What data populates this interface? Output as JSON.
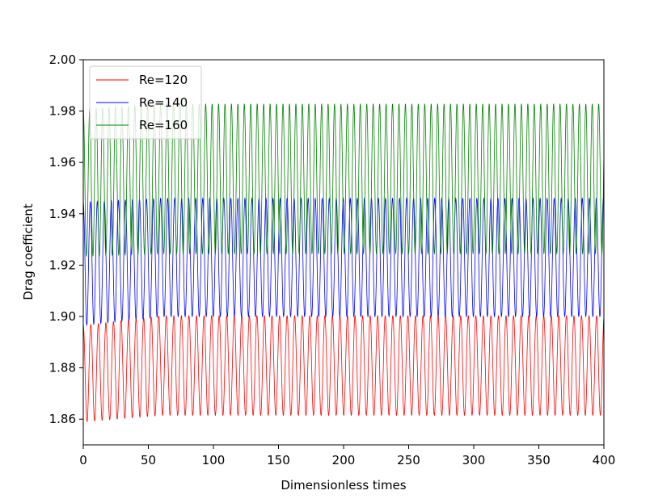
{
  "chart_data": {
    "type": "line",
    "xlabel": "Dimensionless times",
    "ylabel": "Drag coefficient",
    "xlim": [
      0,
      400
    ],
    "ylim": [
      1.85,
      2.0
    ],
    "xticks": [
      0,
      50,
      100,
      150,
      200,
      250,
      300,
      350,
      400
    ],
    "yticks": [
      1.86,
      1.88,
      1.9,
      1.92,
      1.94,
      1.96,
      1.98,
      2.0
    ],
    "xtick_labels": [
      "0",
      "50",
      "100",
      "150",
      "200",
      "250",
      "300",
      "350",
      "400"
    ],
    "ytick_labels": [
      "1.86",
      "1.88",
      "1.90",
      "1.92",
      "1.94",
      "1.96",
      "1.98",
      "2.00"
    ],
    "grid": false,
    "legend": "top-left",
    "series": [
      {
        "name": "Re=120",
        "color": "#ff0000",
        "period": 5.8,
        "min_start": 1.859,
        "min_end": 1.8615,
        "max_start": 1.8965,
        "max_end": 1.9003,
        "x_start": 0,
        "x_end": 400
      },
      {
        "name": "Re=140",
        "color": "#0000ff",
        "period": 5.4,
        "min_start": 1.8965,
        "min_end": 1.9,
        "max_start": 1.9445,
        "max_end": 1.946,
        "x_start": 0,
        "x_end": 400
      },
      {
        "name": "Re=160",
        "color": "#008000",
        "period": 4.95,
        "min_start": 1.9235,
        "min_end": 1.9245,
        "max_start": 1.981,
        "max_end": 1.9828,
        "x_start": 0,
        "x_end": 400
      }
    ]
  }
}
